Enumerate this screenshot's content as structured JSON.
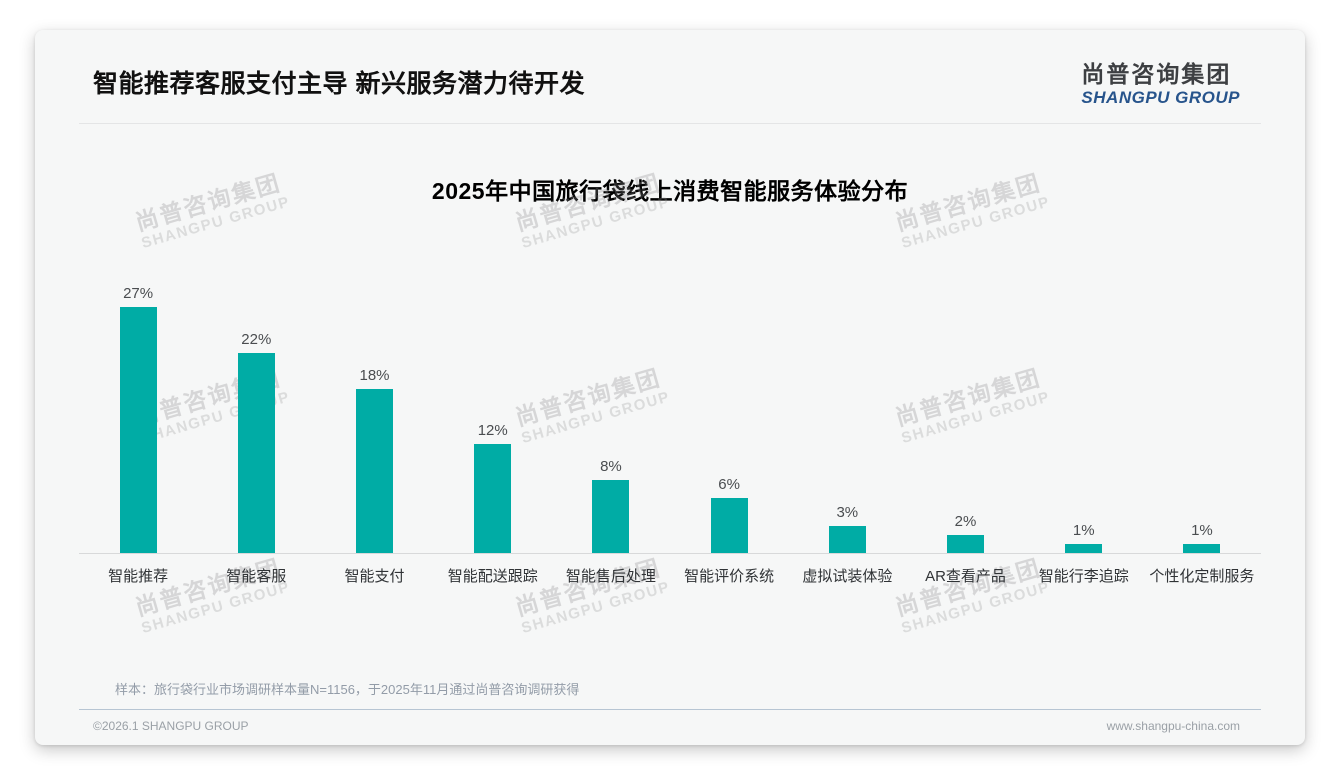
{
  "header": {
    "title": "智能推荐客服支付主导 新兴服务潜力待开发",
    "logo": {
      "cn": "尚普咨询集团",
      "en": "SHANGPU GROUP"
    }
  },
  "chart_data": {
    "type": "bar",
    "title": "2025年中国旅行袋线上消费智能服务体验分布",
    "categories": [
      "智能推荐",
      "智能客服",
      "智能支付",
      "智能配送跟踪",
      "智能售后处理",
      "智能评价系统",
      "虚拟试装体验",
      "AR查看产品",
      "智能行李追踪",
      "个性化定制服务"
    ],
    "values": [
      27,
      22,
      18,
      12,
      8,
      6,
      3,
      2,
      1,
      1
    ],
    "value_labels": [
      "27%",
      "22%",
      "18%",
      "12%",
      "8%",
      "6%",
      "3%",
      "2%",
      "1%",
      "1%"
    ],
    "unit": "%",
    "xlabel": "",
    "ylabel": "",
    "ylim": [
      0,
      30
    ],
    "grid": false,
    "legend": "none",
    "bar_color": "#00ACA5"
  },
  "watermark": {
    "line1": "尚普咨询集团",
    "line2": "SHANGPU GROUP"
  },
  "note": "样本：旅行袋行业市场调研样本量N=1156，于2025年11月通过尚普咨询调研获得",
  "footer": {
    "copyright": "©2026.1 SHANGPU GROUP",
    "website": "www.shangpu-china.com"
  },
  "colors": {
    "bar": "#00ACA5",
    "logo_blue": "#27548C",
    "footer_divider": "#b7c5d3",
    "card_background": "#f6f7f7"
  }
}
